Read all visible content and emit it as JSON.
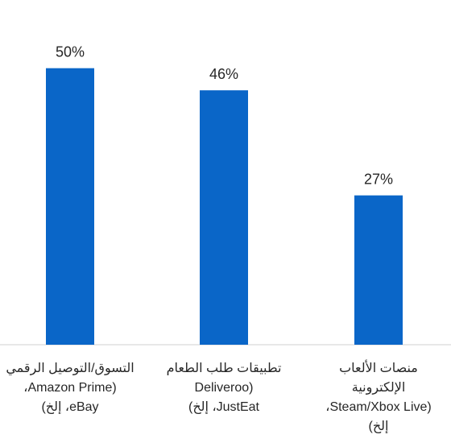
{
  "chart_data": {
    "type": "bar",
    "categories": [
      "التسوق/التوصيل الرقمي\n(Amazon Prime،\neBay، إلخ)",
      "تطبيقات طلب الطعام\n(Deliveroo\nJustEat، إلخ)",
      "منصات الألعاب\nالإلكترونية\n(Steam/Xbox Live،\nإلخ)"
    ],
    "values": [
      50,
      46,
      27
    ],
    "data_labels": [
      "50%",
      "46%",
      "27%"
    ],
    "ylim": [
      0,
      60
    ],
    "grid": false,
    "bar_color": "#0a66c8",
    "axis_color": "#d0d0d0",
    "label_color": "#262626"
  }
}
